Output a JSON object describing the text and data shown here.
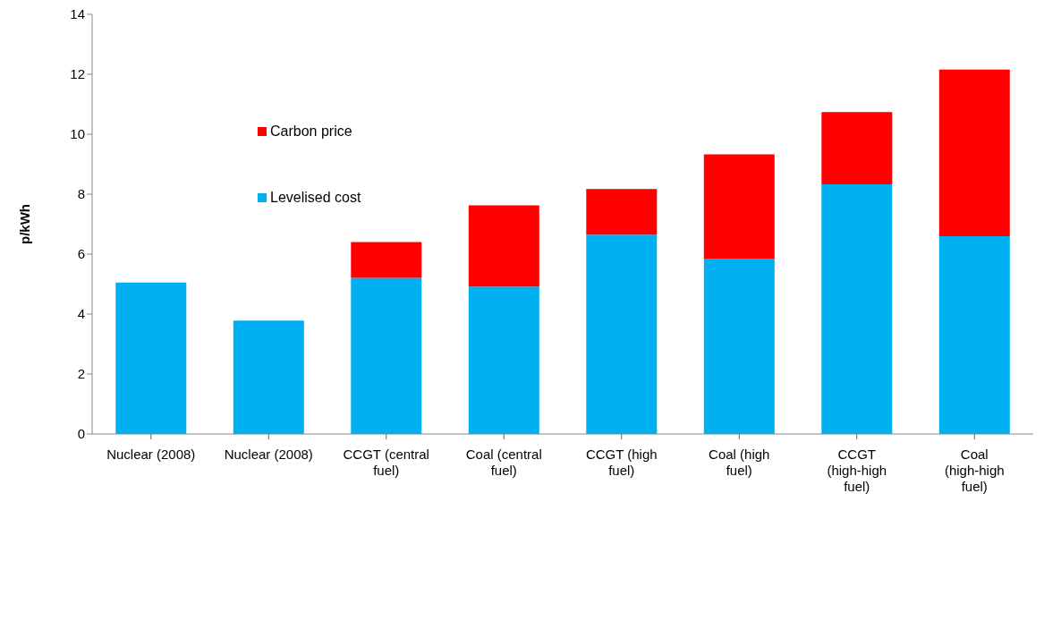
{
  "chart_data": {
    "type": "bar",
    "stacked": true,
    "ylabel": "p/kWh",
    "categories": [
      "Nuclear (2008)",
      "Nuclear (2008)",
      "CCGT (central fuel)",
      "Coal (central fuel)",
      "CCGT (high fuel)",
      "Coal (high fuel)",
      "CCGT (high-high fuel)",
      "Coal (high-high fuel)"
    ],
    "series": [
      {
        "name": "Levelised cost",
        "color": "#00b0f0",
        "values": [
          5.05,
          3.78,
          5.21,
          4.92,
          6.65,
          5.85,
          8.33,
          6.6
        ]
      },
      {
        "name": "Carbon price",
        "color": "#ff0000",
        "values": [
          null,
          null,
          1.19,
          2.71,
          1.52,
          3.48,
          2.41,
          5.56
        ]
      }
    ],
    "ylim": [
      0,
      14
    ],
    "yticks": [
      0,
      2,
      4,
      6,
      8,
      10,
      12,
      14
    ],
    "legend": "top left"
  }
}
